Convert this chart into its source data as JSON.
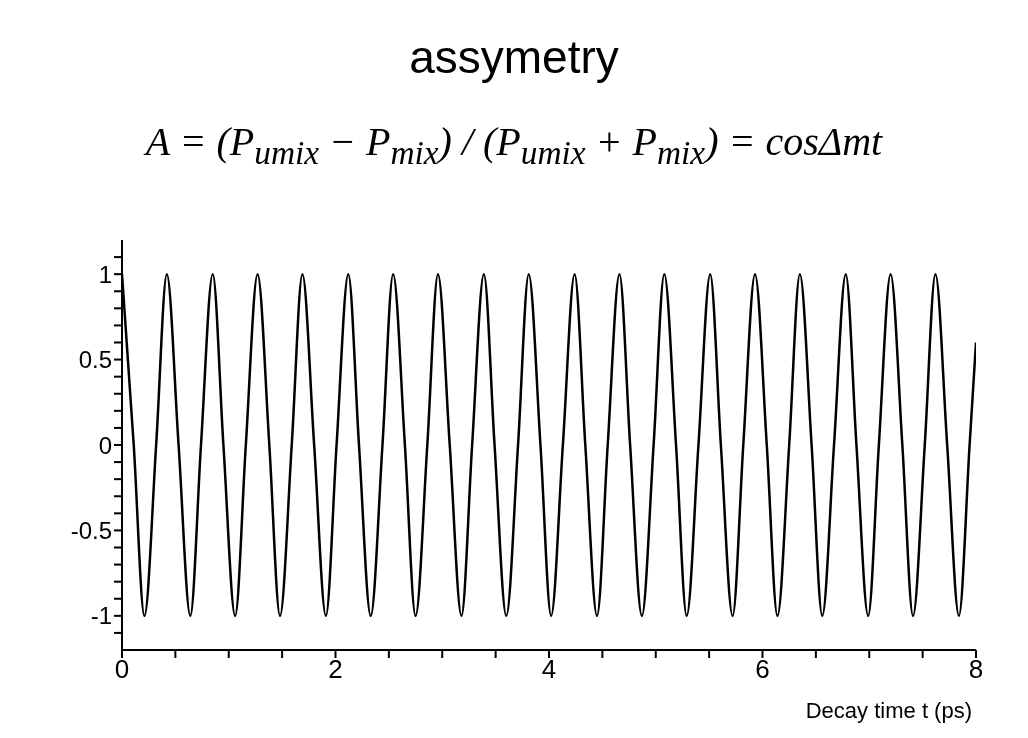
{
  "chart_data": {
    "type": "line",
    "title": "assymetry",
    "subtitle": "A = (P$_{umix}$ − P$_{mix}$) / (P$_{umix}$ + P$_{mix}$) = cosΔmt",
    "xlabel": "Decay time t (ps)",
    "x": [
      0,
      0.11,
      0.21,
      0.32,
      0.42,
      0.53,
      0.64,
      0.74,
      0.85,
      0.95,
      1.06,
      1.16,
      1.27,
      1.38,
      1.48,
      1.59,
      1.69,
      1.8,
      1.91,
      2.01,
      2.12,
      2.22,
      2.33,
      2.44,
      2.54,
      2.65,
      2.75,
      2.86,
      2.96,
      3.07,
      3.18,
      3.28,
      3.39,
      3.49,
      3.6,
      3.71,
      3.81,
      3.92,
      4.02,
      4.13,
      4.24,
      4.34,
      4.45,
      4.55,
      4.66,
      4.76,
      4.87,
      4.98,
      5.08,
      5.19,
      5.29,
      5.4,
      5.51,
      5.61,
      5.72,
      5.82,
      5.93,
      6.04,
      6.14,
      6.25,
      6.35,
      6.46,
      6.56,
      6.67,
      6.78,
      6.88,
      6.99,
      7.09,
      7.2,
      7.31,
      7.41,
      7.52,
      7.62,
      7.73,
      7.84,
      7.94,
      8
    ],
    "series": [
      {
        "color": "#000000",
        "values": [
          1,
          0,
          -1,
          0,
          1,
          0,
          -1,
          0,
          1,
          0,
          -1,
          0,
          1,
          0,
          -1,
          0,
          1,
          0,
          -1,
          0,
          1,
          0,
          -1,
          0,
          1,
          0,
          -1,
          0,
          1,
          0,
          -1,
          0,
          1,
          0,
          -1,
          0,
          1,
          0,
          -1,
          0,
          1,
          0,
          -1,
          0,
          1,
          0,
          -1,
          0,
          1,
          0,
          -1,
          0,
          1,
          0,
          -1,
          0,
          1,
          0,
          -1,
          0,
          1,
          0,
          -1,
          0,
          1,
          0,
          -1,
          0,
          1,
          0,
          -1,
          0,
          1,
          0,
          -1,
          0,
          0.6
        ]
      }
    ],
    "xlim": [
      0,
      8
    ],
    "xticks": [
      0,
      {
        "value": 0.5,
        "label": null
      },
      {
        "value": 1,
        "label": null
      },
      {
        "value": 1.5,
        "label": null
      },
      2,
      {
        "value": 2.5,
        "label": null
      },
      {
        "value": 3,
        "label": null
      },
      {
        "value": 3.5,
        "label": null
      },
      4,
      {
        "value": 4.5,
        "label": null
      },
      {
        "value": 5,
        "label": null
      },
      {
        "value": 5.5,
        "label": null
      },
      6,
      {
        "value": 6.5,
        "label": null
      },
      {
        "value": 7,
        "label": null
      },
      {
        "value": 7.5,
        "label": null
      },
      8
    ],
    "ylim": [
      -1.2,
      1.2
    ],
    "yticks": [
      {
        "value": -1.1,
        "label": null
      },
      -1,
      {
        "value": -0.9,
        "label": null
      },
      {
        "value": -0.8,
        "label": null
      },
      {
        "value": -0.7,
        "label": null
      },
      {
        "value": -0.6,
        "label": null
      },
      -0.5,
      {
        "value": -0.4,
        "label": null
      },
      {
        "value": -0.3,
        "label": null
      },
      {
        "value": -0.2,
        "label": null
      },
      {
        "value": -0.1,
        "label": null
      },
      0,
      {
        "value": 0.1,
        "label": null
      },
      {
        "value": 0.2,
        "label": null
      },
      {
        "value": 0.3,
        "label": null
      },
      {
        "value": 0.4,
        "label": null
      },
      0.5,
      {
        "value": 0.6,
        "label": null
      },
      {
        "value": 0.7,
        "label": null
      },
      {
        "value": 0.8,
        "label": null
      },
      {
        "value": 0.9,
        "label": null
      },
      1,
      {
        "value": 1.1,
        "label": null
      }
    ],
    "grid": false,
    "legend": false
  }
}
